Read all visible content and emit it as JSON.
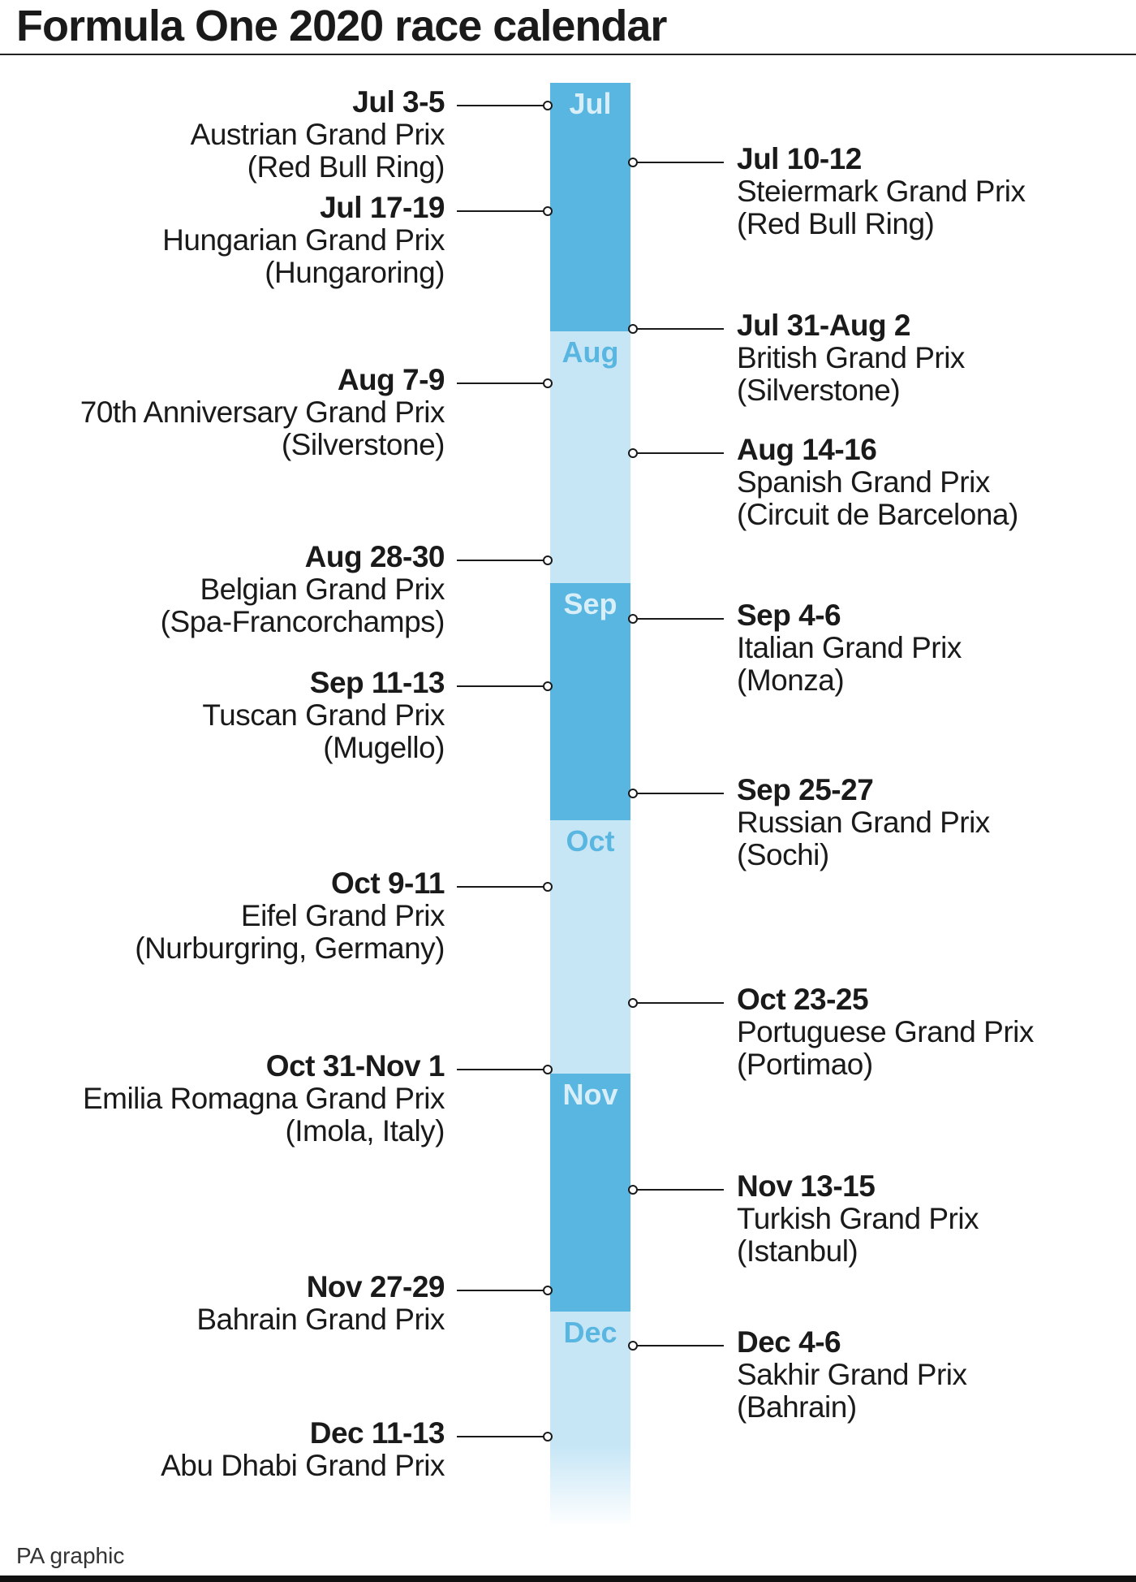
{
  "title": "Formula One 2020 race calendar",
  "source": "PA graphic",
  "colors": {
    "month_dark": "#59b6e0",
    "month_light": "#c6e6f6",
    "text": "#1a1a1a"
  },
  "months": [
    {
      "label": "Jul",
      "shade": "dark"
    },
    {
      "label": "Aug",
      "shade": "light"
    },
    {
      "label": "Sep",
      "shade": "dark"
    },
    {
      "label": "Oct",
      "shade": "light"
    },
    {
      "label": "Nov",
      "shade": "dark"
    },
    {
      "label": "Dec",
      "shade": "light"
    }
  ],
  "races": [
    {
      "date": "Jul 3-5",
      "name": "Austrian Grand Prix",
      "venue": "(Red Bull Ring)",
      "side": "left"
    },
    {
      "date": "Jul 10-12",
      "name": "Steiermark Grand Prix",
      "venue": "(Red Bull Ring)",
      "side": "right"
    },
    {
      "date": "Jul 17-19",
      "name": "Hungarian Grand Prix",
      "venue": "(Hungaroring)",
      "side": "left"
    },
    {
      "date": "Jul 31-Aug 2",
      "name": "British Grand Prix",
      "venue": "(Silverstone)",
      "side": "right"
    },
    {
      "date": "Aug 7-9",
      "name": "70th Anniversary Grand Prix",
      "venue": "(Silverstone)",
      "side": "left"
    },
    {
      "date": "Aug 14-16",
      "name": "Spanish Grand Prix",
      "venue": "(Circuit de Barcelona)",
      "side": "right"
    },
    {
      "date": "Aug 28-30",
      "name": "Belgian Grand Prix",
      "venue": "(Spa-Francorchamps)",
      "side": "left"
    },
    {
      "date": "Sep 4-6",
      "name": "Italian Grand Prix",
      "venue": "(Monza)",
      "side": "right"
    },
    {
      "date": "Sep 11-13",
      "name": "Tuscan Grand Prix",
      "venue": "(Mugello)",
      "side": "left"
    },
    {
      "date": "Sep 25-27",
      "name": "Russian Grand Prix",
      "venue": "(Sochi)",
      "side": "right"
    },
    {
      "date": "Oct 9-11",
      "name": "Eifel Grand Prix",
      "venue": "(Nurburgring, Germany)",
      "side": "left"
    },
    {
      "date": "Oct 23-25",
      "name": "Portuguese Grand Prix",
      "venue": "(Portimao)",
      "side": "right"
    },
    {
      "date": "Oct 31-Nov 1",
      "name": "Emilia Romagna Grand Prix",
      "venue": "(Imola, Italy)",
      "side": "left"
    },
    {
      "date": "Nov 13-15",
      "name": "Turkish Grand Prix",
      "venue": "(Istanbul)",
      "side": "right"
    },
    {
      "date": "Nov 27-29",
      "name": "Bahrain Grand Prix",
      "venue": "",
      "side": "left"
    },
    {
      "date": "Dec 4-6",
      "name": "Sakhir Grand Prix",
      "venue": "(Bahrain)",
      "side": "right"
    },
    {
      "date": "Dec 11-13",
      "name": "Abu Dhabi Grand Prix",
      "venue": "",
      "side": "left"
    }
  ]
}
